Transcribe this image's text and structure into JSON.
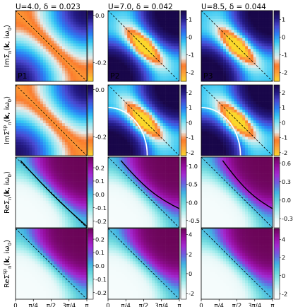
{
  "chart_data": {
    "type": "heatmap",
    "column_titles": [
      "U=4.0, δ = 0.023",
      "U=7.0, δ = 0.042",
      "U=8.5, δ = 0.044"
    ],
    "row_labels": [
      "ImΣn(k, iω0)",
      "ImΣspn(k, iω0)",
      "ReΣn(k, iω0)",
      "ReΣspn(k, iω0)"
    ],
    "x_ticks": [
      "0",
      "π/4",
      "π/2",
      "3π/4",
      "π"
    ],
    "xlim": [
      0,
      3.1416
    ],
    "ylim": [
      0,
      3.1416
    ],
    "colormaps": {
      "Im": [
        "#fbd72a",
        "#fca33a",
        "#fb7a2b",
        "#e7ebe9",
        "#94e7f2",
        "#35c6f4",
        "#2a7ff5",
        "#4848d1",
        "#241a84",
        "#19074a"
      ],
      "Re": [
        "#ffffff",
        "#e8f8f8",
        "#a4eded",
        "#6ad7dd",
        "#41b2e3",
        "#6b62e1",
        "#a32ad2",
        "#960e9f",
        "#6a0556"
      ]
    },
    "panel_labels": [
      "P1",
      "P2",
      "P3"
    ],
    "panels": [
      {
        "row": 0,
        "col": 0,
        "type": "imA",
        "ticks": [
          "0.0",
          "-0.2"
        ],
        "tick_values": [
          0.0,
          -0.2
        ],
        "range": [
          -0.28,
          0.02
        ],
        "label": "P1",
        "curve": "none"
      },
      {
        "row": 0,
        "col": 1,
        "type": "imB",
        "ticks": [
          "1",
          "0",
          "-1",
          "-2"
        ],
        "tick_values": [
          1,
          0,
          -1,
          -2
        ],
        "range": [
          -2.5,
          1.5
        ],
        "label": "P2",
        "curve": "none"
      },
      {
        "row": 0,
        "col": 2,
        "type": "imB",
        "ticks": [
          "1",
          "0",
          "-1",
          "-2"
        ],
        "tick_values": [
          1,
          0,
          -1,
          -2
        ],
        "range": [
          -2.5,
          1.5
        ],
        "label": "P3",
        "curve": "none"
      },
      {
        "row": 1,
        "col": 0,
        "type": "imA",
        "ticks": [
          "0.0",
          "-0.2"
        ],
        "tick_values": [
          0.0,
          -0.2
        ],
        "range": [
          -0.28,
          0.02
        ],
        "label": "",
        "curve": "none"
      },
      {
        "row": 1,
        "col": 1,
        "type": "imB",
        "ticks": [
          "2",
          "1",
          "0",
          "-1",
          "-2"
        ],
        "tick_values": [
          2,
          1,
          0,
          -1,
          -2
        ],
        "range": [
          -2.2,
          2.5
        ],
        "label": "",
        "curve": "white"
      },
      {
        "row": 1,
        "col": 2,
        "type": "imB",
        "ticks": [
          "2",
          "1",
          "0",
          "-1",
          "-2"
        ],
        "tick_values": [
          2,
          1,
          0,
          -1,
          -2
        ],
        "range": [
          -2.2,
          2.5
        ],
        "label": "",
        "curve": "white"
      },
      {
        "row": 2,
        "col": 0,
        "type": "re",
        "ticks": [
          "0.2",
          "0.1",
          "0.0",
          "-0.1",
          "-0.2"
        ],
        "tick_values": [
          0.2,
          0.1,
          0.0,
          -0.1,
          -0.2
        ],
        "range": [
          -0.25,
          0.28
        ],
        "label": "",
        "curve": "black"
      },
      {
        "row": 2,
        "col": 1,
        "type": "re",
        "ticks": [
          "1.0",
          "0.5",
          "0.0",
          "-0.5"
        ],
        "tick_values": [
          1.0,
          0.5,
          0.0,
          -0.5
        ],
        "range": [
          -0.7,
          1.25
        ],
        "label": "",
        "curve": "black"
      },
      {
        "row": 2,
        "col": 2,
        "type": "re",
        "ticks": [
          "0.6",
          "0.3",
          "0.0",
          "-0.3"
        ],
        "tick_values": [
          0.6,
          0.3,
          0.0,
          -0.3
        ],
        "range": [
          -0.45,
          0.7
        ],
        "label": "",
        "curve": "black"
      },
      {
        "row": 3,
        "col": 0,
        "type": "re",
        "ticks": [
          "0.2",
          "0.1",
          "0.0",
          "-0.1",
          "-0.2"
        ],
        "tick_values": [
          0.2,
          0.1,
          0.0,
          -0.1,
          -0.2
        ],
        "range": [
          -0.25,
          0.28
        ],
        "label": "",
        "curve": "none"
      },
      {
        "row": 3,
        "col": 1,
        "type": "re",
        "ticks": [
          "4",
          "2",
          "0",
          "-2"
        ],
        "tick_values": [
          4,
          2,
          0,
          -2
        ],
        "range": [
          -2.6,
          4.6
        ],
        "label": "",
        "curve": "none"
      },
      {
        "row": 3,
        "col": 2,
        "type": "re",
        "ticks": [
          "4",
          "2",
          "0",
          "-2"
        ],
        "tick_values": [
          4,
          2,
          0,
          -2
        ],
        "range": [
          -2.6,
          5.2
        ],
        "label": "",
        "curve": "none"
      }
    ]
  }
}
